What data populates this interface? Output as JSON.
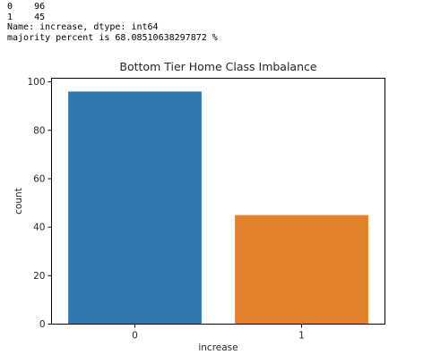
{
  "output": {
    "lines": [
      "0    96",
      "1    45",
      "Name: increase, dtype: int64",
      "majority percent is 68.08510638297872 %"
    ]
  },
  "chart_data": {
    "type": "bar",
    "title": "Bottom Tier Home Class Imbalance",
    "xlabel": "increase",
    "ylabel": "count",
    "categories": [
      "0",
      "1"
    ],
    "values": [
      96,
      45
    ],
    "colors": [
      "#2f77b1",
      "#e3812a"
    ],
    "ylim": [
      0,
      100
    ],
    "yticks": [
      0,
      20,
      40,
      60,
      80,
      100
    ],
    "grid": false
  }
}
